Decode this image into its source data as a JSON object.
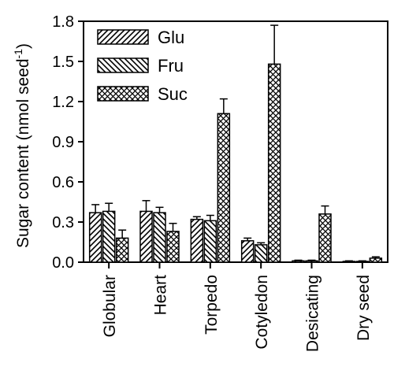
{
  "chart_data": {
    "type": "bar",
    "categories": [
      "Globular",
      "Heart",
      "Torpedo",
      "Cotyledon",
      "Desicating",
      "Dry seed"
    ],
    "series": [
      {
        "name": "Glu",
        "pattern": "diagonal-up",
        "values": [
          0.37,
          0.38,
          0.32,
          0.16,
          0.01,
          0.005
        ],
        "errors": [
          0.06,
          0.08,
          0.02,
          0.02,
          0.005,
          0.005
        ]
      },
      {
        "name": "Fru",
        "pattern": "diagonal-down",
        "values": [
          0.38,
          0.37,
          0.31,
          0.13,
          0.01,
          0.005
        ],
        "errors": [
          0.06,
          0.04,
          0.04,
          0.015,
          0.005,
          0.005
        ]
      },
      {
        "name": "Suc",
        "pattern": "crosshatch",
        "values": [
          0.18,
          0.23,
          1.11,
          1.48,
          0.36,
          0.03
        ],
        "errors": [
          0.06,
          0.06,
          0.11,
          0.29,
          0.06,
          0.01
        ]
      }
    ],
    "ylabel": "Sugar content (nmol seed",
    "ylabel_sup": "-1",
    "ylabel_close": ")",
    "xlabel": "",
    "title": "",
    "ylim": [
      0,
      1.8
    ],
    "yticks": [
      "0.0",
      "0.3",
      "0.6",
      "0.9",
      "1.2",
      "1.5",
      "1.8"
    ],
    "legend_position": "top-left",
    "grid": false,
    "colors": {
      "stroke": "#000000",
      "background": "#ffffff"
    }
  }
}
